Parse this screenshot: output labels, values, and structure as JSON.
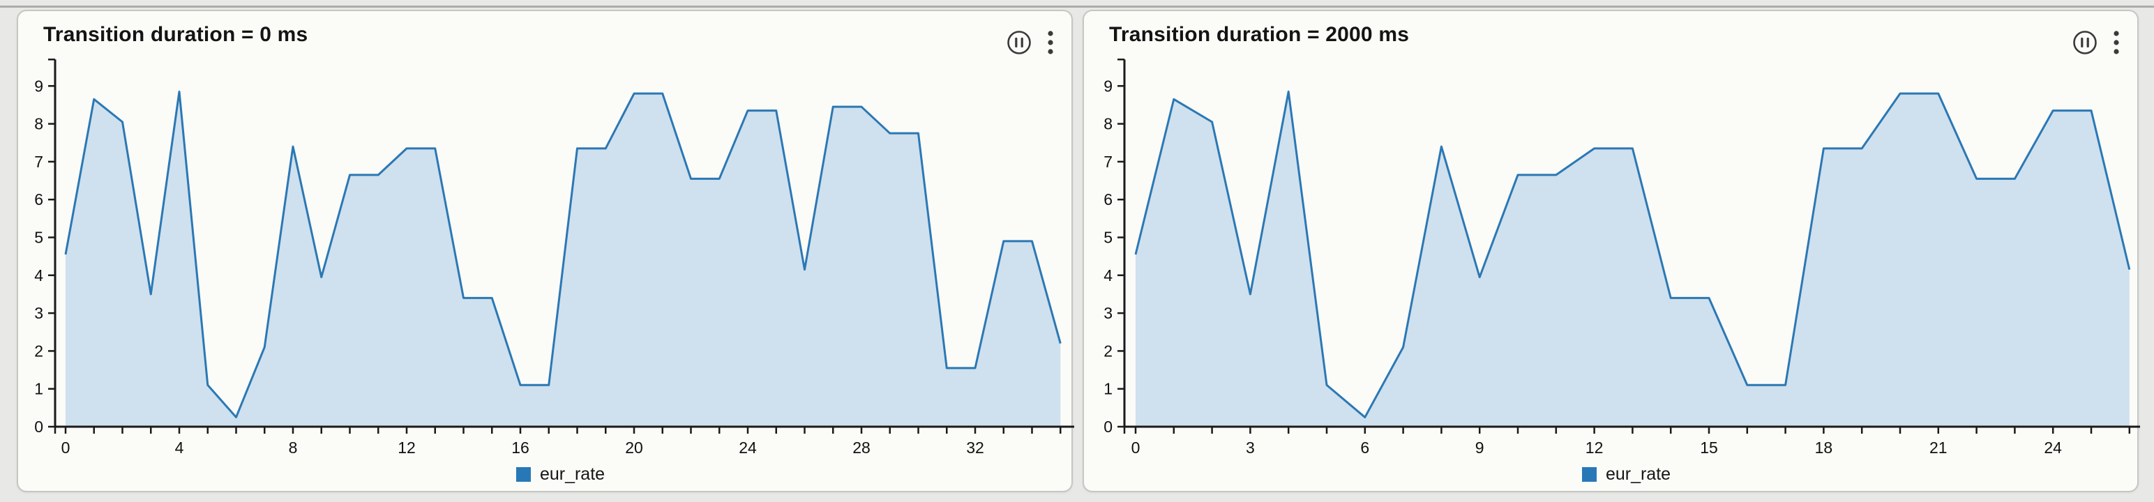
{
  "page": {
    "background": "#e8e8e6"
  },
  "panels": [
    {
      "title": "Transition duration = 0 ms",
      "toolbar": {
        "pause_icon": "pause-circle-icon",
        "menu_icon": "kebab-menu-icon"
      },
      "legend": {
        "label": "eur_rate",
        "swatch_color": "#2878b8"
      }
    },
    {
      "title": "Transition duration = 2000 ms",
      "toolbar": {
        "pause_icon": "pause-circle-icon",
        "menu_icon": "kebab-menu-icon"
      },
      "legend": {
        "label": "eur_rate",
        "swatch_color": "#2878b8"
      }
    }
  ],
  "chart_data": [
    {
      "type": "area",
      "title": "Transition duration = 0 ms",
      "series_name": "eur_rate",
      "x": [
        0,
        1,
        2,
        3,
        4,
        5,
        6,
        7,
        8,
        9,
        10,
        11,
        12,
        13,
        14,
        15,
        16,
        17,
        18,
        19,
        20,
        21,
        22,
        23,
        24,
        25,
        26,
        27,
        28,
        29,
        30,
        31,
        32,
        33,
        34,
        35
      ],
      "values": [
        4.55,
        8.65,
        8.05,
        3.5,
        8.85,
        1.1,
        0.25,
        2.1,
        7.4,
        3.95,
        6.65,
        6.65,
        7.35,
        7.35,
        3.4,
        3.4,
        1.1,
        1.1,
        7.35,
        7.35,
        8.8,
        8.8,
        6.55,
        6.55,
        8.35,
        8.35,
        4.15,
        8.45,
        8.45,
        7.75,
        7.75,
        1.55,
        1.55,
        4.9,
        4.9,
        2.2
      ],
      "x_tick_step": 1,
      "x_labels": [
        0,
        4,
        8,
        12,
        16,
        20,
        24,
        28,
        32
      ],
      "y_ticks": [
        0,
        1,
        2,
        3,
        4,
        5,
        6,
        7,
        8,
        9
      ],
      "xlim": [
        0,
        35.63
      ],
      "ylim": [
        0,
        9.7
      ],
      "grid": false,
      "legend_position": "bottom-center",
      "line_color": "#2b78b4",
      "fill_color": "#cfe0ee",
      "axis_color": "#1a1a1a"
    },
    {
      "type": "area",
      "title": "Transition duration = 2000 ms",
      "series_name": "eur_rate",
      "x": [
        0,
        1,
        2,
        3,
        4,
        5,
        6,
        7,
        8,
        9,
        10,
        11,
        12,
        13,
        14,
        15,
        16,
        17,
        18,
        19,
        20,
        21,
        22,
        23,
        24,
        25,
        26
      ],
      "values": [
        4.55,
        8.65,
        8.05,
        3.5,
        8.85,
        1.1,
        0.25,
        2.1,
        7.4,
        3.95,
        6.65,
        6.65,
        7.35,
        7.35,
        3.4,
        3.4,
        1.1,
        1.1,
        7.35,
        7.35,
        8.8,
        8.8,
        6.55,
        6.55,
        8.35,
        8.35,
        4.15
      ],
      "x_tick_step": 1,
      "x_labels": [
        0,
        3,
        6,
        9,
        12,
        15,
        18,
        21,
        24
      ],
      "y_ticks": [
        0,
        1,
        2,
        3,
        4,
        5,
        6,
        7,
        8,
        9
      ],
      "xlim": [
        0,
        26.3
      ],
      "ylim": [
        0,
        9.7
      ],
      "grid": false,
      "legend_position": "bottom-center",
      "line_color": "#2b78b4",
      "fill_color": "#cfe0ee",
      "axis_color": "#1a1a1a"
    }
  ]
}
